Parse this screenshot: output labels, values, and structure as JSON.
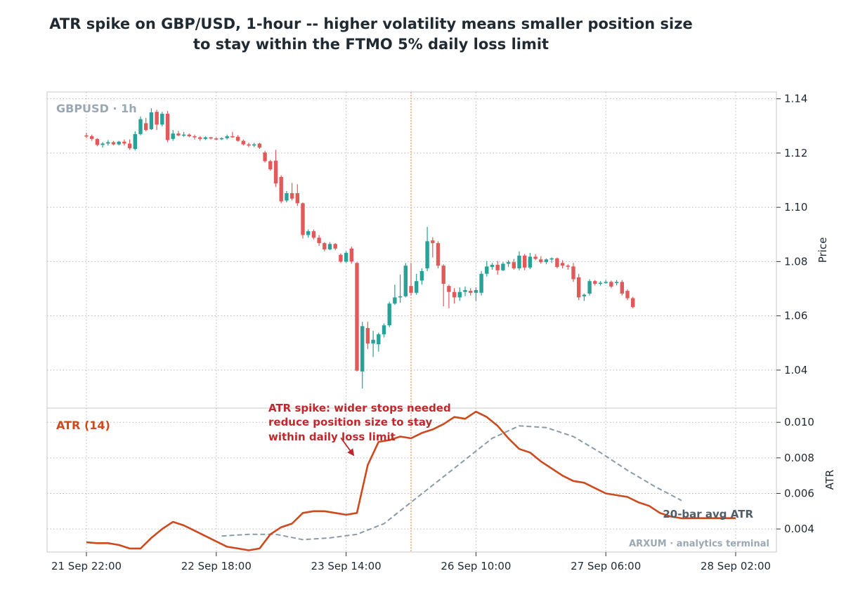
{
  "title_line1": "ATR spike on GBP/USD, 1-hour -- higher volatility means smaller position size",
  "title_line2": "to stay within the FTMO 5% daily loss limit",
  "watermark": "ARXUM · analytics terminal",
  "colors": {
    "up": "#2aa198",
    "down": "#e05a5a",
    "atr": "#cc4a1e",
    "avg": "#8a9ba8",
    "annotation": "#c0282d",
    "vline": "#e8906a",
    "grid": "#b8b8b8",
    "frame": "#c8c8c8"
  },
  "chart_data": [
    {
      "type": "candlestick",
      "panel_label": "GBPUSD · 1h",
      "ylabel": "Price",
      "ylim": [
        1.026,
        1.1425
      ],
      "yticks": [
        1.04,
        1.06,
        1.08,
        1.1,
        1.12,
        1.14
      ],
      "ytick_labels": [
        "1.04",
        "1.06",
        "1.08",
        "1.10",
        "1.12",
        "1.14"
      ],
      "x_index_range": [
        0,
        120
      ],
      "xticks": [
        0,
        24,
        48,
        72,
        96,
        120
      ],
      "xtick_labels": [
        "21 Sep 22:00",
        "22 Sep 18:00",
        "23 Sep 14:00",
        "26 Sep 10:00",
        "27 Sep 06:00",
        "28 Sep 02:00"
      ],
      "grid": true,
      "spike_index": 60,
      "candles": [
        {
          "x": 0,
          "o": 1.1265,
          "h": 1.1275,
          "l": 1.1255,
          "c": 1.1262
        },
        {
          "x": 1,
          "o": 1.1262,
          "h": 1.1268,
          "l": 1.1245,
          "c": 1.1252
        },
        {
          "x": 2,
          "o": 1.1252,
          "h": 1.1255,
          "l": 1.1225,
          "c": 1.123
        },
        {
          "x": 3,
          "o": 1.123,
          "h": 1.124,
          "l": 1.122,
          "c": 1.1235
        },
        {
          "x": 4,
          "o": 1.1235,
          "h": 1.1248,
          "l": 1.1228,
          "c": 1.124
        },
        {
          "x": 5,
          "o": 1.124,
          "h": 1.1245,
          "l": 1.1228,
          "c": 1.1232
        },
        {
          "x": 6,
          "o": 1.1232,
          "h": 1.1245,
          "l": 1.1228,
          "c": 1.1242
        },
        {
          "x": 7,
          "o": 1.1242,
          "h": 1.125,
          "l": 1.1228,
          "c": 1.1235
        },
        {
          "x": 8,
          "o": 1.1235,
          "h": 1.125,
          "l": 1.1212,
          "c": 1.1218
        },
        {
          "x": 9,
          "o": 1.1215,
          "h": 1.128,
          "l": 1.121,
          "c": 1.127
        },
        {
          "x": 10,
          "o": 1.127,
          "h": 1.1335,
          "l": 1.1265,
          "c": 1.1325
        },
        {
          "x": 11,
          "o": 1.131,
          "h": 1.133,
          "l": 1.128,
          "c": 1.1285
        },
        {
          "x": 12,
          "o": 1.1288,
          "h": 1.1365,
          "l": 1.1285,
          "c": 1.135
        },
        {
          "x": 13,
          "o": 1.1352,
          "h": 1.136,
          "l": 1.1285,
          "c": 1.1305
        },
        {
          "x": 14,
          "o": 1.1305,
          "h": 1.1352,
          "l": 1.1298,
          "c": 1.1345
        },
        {
          "x": 15,
          "o": 1.1345,
          "h": 1.1355,
          "l": 1.124,
          "c": 1.1248
        },
        {
          "x": 16,
          "o": 1.1252,
          "h": 1.1285,
          "l": 1.1245,
          "c": 1.1272
        },
        {
          "x": 17,
          "o": 1.1272,
          "h": 1.1282,
          "l": 1.1262,
          "c": 1.1265
        },
        {
          "x": 18,
          "o": 1.1265,
          "h": 1.1278,
          "l": 1.126,
          "c": 1.1268
        },
        {
          "x": 19,
          "o": 1.1268,
          "h": 1.1272,
          "l": 1.1258,
          "c": 1.1262
        },
        {
          "x": 20,
          "o": 1.1262,
          "h": 1.1268,
          "l": 1.125,
          "c": 1.1258
        },
        {
          "x": 21,
          "o": 1.1258,
          "h": 1.1262,
          "l": 1.1245,
          "c": 1.1252
        },
        {
          "x": 22,
          "o": 1.1252,
          "h": 1.1262,
          "l": 1.1248,
          "c": 1.1258
        },
        {
          "x": 23,
          "o": 1.1258,
          "h": 1.126,
          "l": 1.125,
          "c": 1.1254
        },
        {
          "x": 24,
          "o": 1.1254,
          "h": 1.1258,
          "l": 1.1248,
          "c": 1.1252
        },
        {
          "x": 25,
          "o": 1.1252,
          "h": 1.1258,
          "l": 1.1248,
          "c": 1.1255
        },
        {
          "x": 26,
          "o": 1.1255,
          "h": 1.1268,
          "l": 1.125,
          "c": 1.1262
        },
        {
          "x": 27,
          "o": 1.1262,
          "h": 1.1278,
          "l": 1.1256,
          "c": 1.126
        },
        {
          "x": 28,
          "o": 1.126,
          "h": 1.1266,
          "l": 1.1242,
          "c": 1.1245
        },
        {
          "x": 29,
          "o": 1.1245,
          "h": 1.125,
          "l": 1.1228,
          "c": 1.1232
        },
        {
          "x": 30,
          "o": 1.1232,
          "h": 1.1238,
          "l": 1.1222,
          "c": 1.1228
        },
        {
          "x": 31,
          "o": 1.1228,
          "h": 1.1238,
          "l": 1.1222,
          "c": 1.1232
        },
        {
          "x": 32,
          "o": 1.1235,
          "h": 1.1238,
          "l": 1.1215,
          "c": 1.122
        },
        {
          "x": 33,
          "o": 1.1202,
          "h": 1.1208,
          "l": 1.1165,
          "c": 1.117
        },
        {
          "x": 34,
          "o": 1.117,
          "h": 1.1175,
          "l": 1.1135,
          "c": 1.114
        },
        {
          "x": 35,
          "o": 1.1172,
          "h": 1.1212,
          "l": 1.1075,
          "c": 1.1088
        },
        {
          "x": 36,
          "o": 1.1112,
          "h": 1.1118,
          "l": 1.1015,
          "c": 1.1022
        },
        {
          "x": 37,
          "o": 1.1025,
          "h": 1.106,
          "l": 1.1018,
          "c": 1.1052
        },
        {
          "x": 38,
          "o": 1.1052,
          "h": 1.109,
          "l": 1.1025,
          "c": 1.1032
        },
        {
          "x": 39,
          "o": 1.1052,
          "h": 1.1085,
          "l": 1.1005,
          "c": 1.1015
        },
        {
          "x": 40,
          "o": 1.1015,
          "h": 1.1018,
          "l": 1.0885,
          "c": 1.0898
        },
        {
          "x": 41,
          "o": 1.0898,
          "h": 1.0918,
          "l": 1.0888,
          "c": 1.0912
        },
        {
          "x": 42,
          "o": 1.0912,
          "h": 1.0918,
          "l": 1.0882,
          "c": 1.0888
        },
        {
          "x": 43,
          "o": 1.0888,
          "h": 1.0898,
          "l": 1.0858,
          "c": 1.0868
        },
        {
          "x": 44,
          "o": 1.0868,
          "h": 1.0872,
          "l": 1.0838,
          "c": 1.0845
        },
        {
          "x": 45,
          "o": 1.0845,
          "h": 1.0872,
          "l": 1.0842,
          "c": 1.0865
        },
        {
          "x": 46,
          "o": 1.0865,
          "h": 1.0868,
          "l": 1.0842,
          "c": 1.0848
        },
        {
          "x": 47,
          "o": 1.0825,
          "h": 1.083,
          "l": 1.0795,
          "c": 1.08
        },
        {
          "x": 48,
          "o": 1.08,
          "h": 1.0838,
          "l": 1.0795,
          "c": 1.0832
        },
        {
          "x": 49,
          "o": 1.0848,
          "h": 1.0855,
          "l": 1.0792,
          "c": 1.08
        },
        {
          "x": 50,
          "o": 1.0795,
          "h": 1.0798,
          "l": 1.0395,
          "c": 1.0398
        },
        {
          "x": 51,
          "o": 1.0395,
          "h": 1.0578,
          "l": 1.0332,
          "c": 1.0562
        },
        {
          "x": 52,
          "o": 1.0555,
          "h": 1.0578,
          "l": 1.0478,
          "c": 1.0498
        },
        {
          "x": 53,
          "o": 1.0498,
          "h": 1.0545,
          "l": 1.0448,
          "c": 1.0512
        },
        {
          "x": 54,
          "o": 1.0495,
          "h": 1.0538,
          "l": 1.0468,
          "c": 1.0532
        },
        {
          "x": 55,
          "o": 1.0532,
          "h": 1.0572,
          "l": 1.052,
          "c": 1.0565
        },
        {
          "x": 56,
          "o": 1.0565,
          "h": 1.0652,
          "l": 1.0558,
          "c": 1.0645
        },
        {
          "x": 57,
          "o": 1.0645,
          "h": 1.0715,
          "l": 1.064,
          "c": 1.0668
        },
        {
          "x": 58,
          "o": 1.0668,
          "h": 1.0752,
          "l": 1.0648,
          "c": 1.0672
        },
        {
          "x": 59,
          "o": 1.0672,
          "h": 1.0795,
          "l": 1.0668,
          "c": 1.0785
        },
        {
          "x": 60,
          "o": 1.071,
          "h": 1.0795,
          "l": 1.0675,
          "c": 1.0685
        },
        {
          "x": 61,
          "o": 1.0685,
          "h": 1.0755,
          "l": 1.0678,
          "c": 1.0728
        },
        {
          "x": 62,
          "o": 1.073,
          "h": 1.0775,
          "l": 1.0715,
          "c": 1.0765
        },
        {
          "x": 63,
          "o": 1.0775,
          "h": 1.0928,
          "l": 1.0765,
          "c": 1.0875
        },
        {
          "x": 64,
          "o": 1.0878,
          "h": 1.089,
          "l": 1.0815,
          "c": 1.0868
        },
        {
          "x": 65,
          "o": 1.0868,
          "h": 1.0875,
          "l": 1.0775,
          "c": 1.0785
        },
        {
          "x": 66,
          "o": 1.0785,
          "h": 1.079,
          "l": 1.0635,
          "c": 1.0718
        },
        {
          "x": 67,
          "o": 1.071,
          "h": 1.0715,
          "l": 1.0628,
          "c": 1.0688
        },
        {
          "x": 68,
          "o": 1.0688,
          "h": 1.0702,
          "l": 1.0645,
          "c": 1.0668
        },
        {
          "x": 69,
          "o": 1.0668,
          "h": 1.0705,
          "l": 1.0655,
          "c": 1.0688
        },
        {
          "x": 70,
          "o": 1.0688,
          "h": 1.0708,
          "l": 1.0672,
          "c": 1.0695
        },
        {
          "x": 71,
          "o": 1.0692,
          "h": 1.0702,
          "l": 1.0675,
          "c": 1.0685
        },
        {
          "x": 72,
          "o": 1.0685,
          "h": 1.0705,
          "l": 1.0655,
          "c": 1.0695
        },
        {
          "x": 73,
          "o": 1.0685,
          "h": 1.0765,
          "l": 1.0675,
          "c": 1.0755
        },
        {
          "x": 74,
          "o": 1.0755,
          "h": 1.0802,
          "l": 1.0745,
          "c": 1.0782
        },
        {
          "x": 75,
          "o": 1.078,
          "h": 1.0795,
          "l": 1.077,
          "c": 1.0788
        },
        {
          "x": 76,
          "o": 1.0788,
          "h": 1.0802,
          "l": 1.0752,
          "c": 1.0768
        },
        {
          "x": 77,
          "o": 1.0768,
          "h": 1.0798,
          "l": 1.0765,
          "c": 1.0792
        },
        {
          "x": 78,
          "o": 1.0792,
          "h": 1.0805,
          "l": 1.078,
          "c": 1.0798
        },
        {
          "x": 79,
          "o": 1.0798,
          "h": 1.081,
          "l": 1.077,
          "c": 1.0775
        },
        {
          "x": 80,
          "o": 1.0775,
          "h": 1.0838,
          "l": 1.0768,
          "c": 1.0822
        },
        {
          "x": 81,
          "o": 1.0822,
          "h": 1.0828,
          "l": 1.0768,
          "c": 1.0778
        },
        {
          "x": 82,
          "o": 1.0778,
          "h": 1.0832,
          "l": 1.0772,
          "c": 1.0818
        },
        {
          "x": 83,
          "o": 1.0818,
          "h": 1.0828,
          "l": 1.0805,
          "c": 1.081
        },
        {
          "x": 84,
          "o": 1.0808,
          "h": 1.082,
          "l": 1.0792,
          "c": 1.0798
        },
        {
          "x": 85,
          "o": 1.0798,
          "h": 1.0812,
          "l": 1.079,
          "c": 1.0808
        },
        {
          "x": 86,
          "o": 1.0808,
          "h": 1.0815,
          "l": 1.0795,
          "c": 1.0812
        },
        {
          "x": 87,
          "o": 1.0812,
          "h": 1.0815,
          "l": 1.0775,
          "c": 1.078
        },
        {
          "x": 88,
          "o": 1.0795,
          "h": 1.0805,
          "l": 1.0775,
          "c": 1.0785
        },
        {
          "x": 89,
          "o": 1.0785,
          "h": 1.079,
          "l": 1.077,
          "c": 1.0782
        },
        {
          "x": 90,
          "o": 1.0782,
          "h": 1.0795,
          "l": 1.0725,
          "c": 1.0735
        },
        {
          "x": 91,
          "o": 1.0742,
          "h": 1.0755,
          "l": 1.0658,
          "c": 1.0668
        },
        {
          "x": 92,
          "o": 1.0672,
          "h": 1.0682,
          "l": 1.0655,
          "c": 1.0678
        },
        {
          "x": 93,
          "o": 1.0682,
          "h": 1.0735,
          "l": 1.0675,
          "c": 1.0728
        },
        {
          "x": 94,
          "o": 1.0728,
          "h": 1.0732,
          "l": 1.0712,
          "c": 1.0718
        },
        {
          "x": 95,
          "o": 1.0718,
          "h": 1.0728,
          "l": 1.0712,
          "c": 1.0722
        },
        {
          "x": 96,
          "o": 1.0722,
          "h": 1.0732,
          "l": 1.0718,
          "c": 1.0725
        },
        {
          "x": 97,
          "o": 1.0725,
          "h": 1.073,
          "l": 1.0702,
          "c": 1.0708
        },
        {
          "x": 98,
          "o": 1.0722,
          "h": 1.0732,
          "l": 1.0712,
          "c": 1.0725
        },
        {
          "x": 99,
          "o": 1.0725,
          "h": 1.0732,
          "l": 1.0675,
          "c": 1.0682
        },
        {
          "x": 100,
          "o": 1.0692,
          "h": 1.0698,
          "l": 1.0658,
          "c": 1.0665
        },
        {
          "x": 101,
          "o": 1.0665,
          "h": 1.067,
          "l": 1.0628,
          "c": 1.0632
        }
      ]
    },
    {
      "type": "line",
      "panel_label": "ATR (14)",
      "ylabel": "ATR",
      "ylim": [
        0.0027,
        0.0108
      ],
      "yticks": [
        0.004,
        0.006,
        0.008,
        0.01
      ],
      "ytick_labels": [
        "0.004",
        "0.006",
        "0.008",
        "0.010"
      ],
      "grid": true,
      "series": [
        {
          "name": "ATR (14)",
          "x": [
            0,
            2,
            4,
            6,
            8,
            10,
            12,
            14,
            16,
            18,
            20,
            22,
            24,
            26,
            28,
            30,
            32,
            34,
            36,
            38,
            40,
            42,
            44,
            46,
            48,
            50,
            52,
            54,
            56,
            58,
            60,
            62,
            64,
            66,
            68,
            70,
            72,
            74,
            76,
            78,
            80,
            82,
            84,
            86,
            88,
            90,
            92,
            94,
            96,
            98,
            100,
            102,
            104,
            106,
            108,
            110,
            112,
            114,
            116,
            118,
            120
          ],
          "values": [
            0.00325,
            0.0032,
            0.0032,
            0.0031,
            0.0029,
            0.0029,
            0.0035,
            0.004,
            0.0044,
            0.0042,
            0.0039,
            0.0036,
            0.0033,
            0.003,
            0.0029,
            0.0028,
            0.0029,
            0.0037,
            0.0041,
            0.0043,
            0.0049,
            0.005,
            0.005,
            0.0049,
            0.0048,
            0.0049,
            0.0076,
            0.0089,
            0.009,
            0.0092,
            0.0091,
            0.0094,
            0.0096,
            0.0099,
            0.0103,
            0.0102,
            0.0106,
            0.0103,
            0.0098,
            0.0091,
            0.0085,
            0.0083,
            0.0078,
            0.0074,
            0.007,
            0.0067,
            0.0066,
            0.0063,
            0.006,
            0.0059,
            0.0058,
            0.0055,
            0.0053,
            0.0049,
            0.0047,
            0.0046,
            0.00461,
            0.00461,
            0.00461,
            0.00461,
            0.00461
          ]
        },
        {
          "name": "20-bar avg ATR",
          "x": [
            25,
            30,
            35,
            40,
            45,
            50,
            55,
            60,
            65,
            70,
            75,
            80,
            85,
            90,
            95,
            100,
            105,
            110
          ],
          "values": [
            0.0036,
            0.0037,
            0.0037,
            0.0034,
            0.0035,
            0.0037,
            0.0043,
            0.0055,
            0.0067,
            0.0079,
            0.0091,
            0.0098,
            0.0097,
            0.0092,
            0.0083,
            0.0073,
            0.0064,
            0.0056
          ]
        }
      ],
      "annotation": {
        "lines": [
          "ATR spike: wider stops needed",
          "reduce position size to stay",
          "within daily loss limit"
        ],
        "arrow_to": {
          "x": 49.5,
          "y": 0.0081
        }
      },
      "avg_label": "20-bar avg ATR"
    }
  ]
}
